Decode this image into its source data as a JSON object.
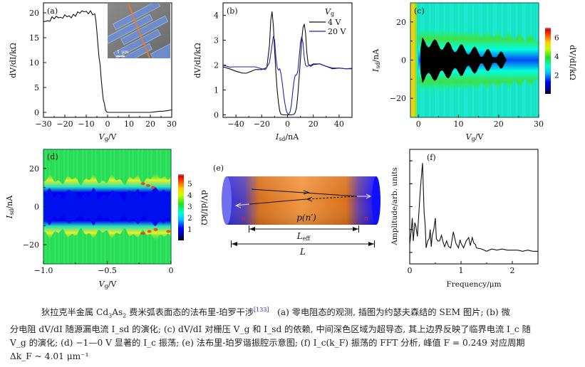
{
  "colors": {
    "axis": "#111111",
    "series_4V": "#111111",
    "series_20V": "#2222bb",
    "superconducting": "#000000",
    "n_region": "#2a2ae0",
    "p_region": "#e88a3a",
    "ref_link": "#2233aa"
  },
  "chart_data": [
    {
      "panel": "(a)",
      "type": "line",
      "xlabel": "Vg/V",
      "ylabel": "dV/dI/kΩ",
      "xlim": [
        -30,
        30
      ],
      "ylim": [
        -1,
        22
      ],
      "xticks": [
        "−30",
        "−20",
        "−10",
        "0",
        "10",
        "20",
        "30"
      ],
      "yticks": [
        "0",
        "5",
        "10",
        "15",
        "20"
      ],
      "inset": {
        "type": "SEM image",
        "scale_bar": "1 μm"
      },
      "series": [
        {
          "name": "dV/dI",
          "x": [
            -30,
            -28,
            -27,
            -26,
            -25,
            -24,
            -23,
            -22,
            -21,
            -20,
            -19,
            -18,
            -17,
            -16,
            -15,
            -14,
            -13,
            -12,
            -11,
            -10,
            -9,
            -8,
            -7,
            -6,
            -5.5,
            -5,
            -4.5,
            -4,
            -3.5,
            -3,
            -2.5,
            -2,
            -1.5,
            -1,
            -0.5,
            0,
            5,
            10,
            15,
            20,
            22,
            24,
            26,
            28,
            30
          ],
          "y": [
            18.2,
            18.4,
            18.3,
            19.2,
            18.8,
            19.3,
            19.0,
            19.1,
            18.9,
            19.6,
            19.2,
            19.4,
            19.0,
            19.7,
            19.3,
            20.2,
            19.9,
            20.4,
            20.2,
            20.3,
            19.8,
            20.4,
            19.6,
            19.8,
            18.5,
            16.2,
            13.5,
            11.0,
            9.6,
            6.8,
            4.5,
            2.5,
            1.8,
            0.5,
            0.1,
            0.0,
            0.0,
            0.0,
            0.0,
            0.0,
            0.1,
            0.2,
            0.25,
            0.35,
            0.5
          ]
        }
      ]
    },
    {
      "panel": "(b)",
      "type": "line",
      "xlabel": "Isd/nA",
      "ylabel": "dV/dI/kΩ",
      "xlim": [
        -50,
        50
      ],
      "ylim": [
        -0.1,
        4.5
      ],
      "xticks": [
        "−40",
        "−20",
        "0",
        "20",
        "40"
      ],
      "yticks": [
        "0",
        "1",
        "2",
        "3",
        "4"
      ],
      "legend": {
        "title": "Vg",
        "position": "top-right"
      },
      "series": [
        {
          "name": "4 V",
          "x": [
            -50,
            -45,
            -40,
            -35,
            -32,
            -28,
            -25,
            -20,
            -16,
            -14,
            -13,
            -12,
            -11,
            -10,
            -9,
            -8,
            -7,
            -6,
            -5,
            -3,
            0,
            3,
            5,
            6,
            7,
            8,
            9,
            10,
            11,
            12,
            13,
            14,
            15,
            16,
            18,
            20,
            25,
            30,
            35,
            40,
            45,
            50
          ],
          "y": [
            1.93,
            1.85,
            1.75,
            1.68,
            1.67,
            1.75,
            1.82,
            1.82,
            1.9,
            2.8,
            3.8,
            4.15,
            3.6,
            2.6,
            1.7,
            1.0,
            0.5,
            0.15,
            0.02,
            0.0,
            0.0,
            0.0,
            0.02,
            0.1,
            0.3,
            0.8,
            1.5,
            2.2,
            3.0,
            3.5,
            3.65,
            3.3,
            2.5,
            2.05,
            1.95,
            2.02,
            2.05,
            1.95,
            1.85,
            1.88,
            1.85,
            1.85
          ]
        },
        {
          "name": "20 V",
          "x": [
            -50,
            -45,
            -40,
            -35,
            -30,
            -25,
            -20,
            -17,
            -14,
            -12,
            -11,
            -10,
            -9,
            -8,
            -7,
            -6,
            -5,
            -4,
            -3,
            -2,
            -1,
            0,
            1,
            2,
            3,
            4,
            5,
            6,
            7,
            8,
            9,
            10,
            11,
            12,
            13,
            14,
            15,
            18,
            20,
            25,
            30,
            35,
            40,
            45,
            50
          ],
          "y": [
            2.0,
            1.92,
            1.93,
            1.93,
            1.93,
            1.93,
            1.85,
            1.82,
            2.1,
            2.8,
            3.15,
            3.0,
            2.3,
            1.9,
            1.8,
            1.85,
            1.65,
            1.25,
            0.8,
            0.45,
            0.18,
            0.05,
            0.03,
            0.12,
            0.4,
            0.9,
            1.35,
            1.6,
            1.6,
            1.75,
            2.3,
            2.9,
            3.15,
            2.9,
            2.3,
            2.0,
            1.95,
            2.0,
            2.05,
            2.05,
            1.95,
            1.88,
            1.88,
            1.85,
            1.87
          ]
        }
      ]
    },
    {
      "panel": "(c)",
      "type": "heatmap",
      "xlabel": "Vg/V",
      "ylabel": "Isd/nA",
      "xlim": [
        -2,
        30
      ],
      "ylim": [
        -30,
        30
      ],
      "xticks": [
        "0",
        "10",
        "20",
        "30"
      ],
      "yticks": [
        "−20",
        "0",
        "20"
      ],
      "colorbar": {
        "label": "dV/dI/kΩ",
        "ticks": [
          "2",
          "4",
          "6"
        ],
        "range": [
          0,
          7
        ]
      }
    },
    {
      "panel": "(d)",
      "type": "heatmap",
      "xlabel": "Vg/V",
      "ylabel": "Isd/nA",
      "xlim": [
        -1.0,
        0
      ],
      "ylim": [
        -30,
        30
      ],
      "xticks": [
        "−1.0",
        "−0.5",
        "0"
      ],
      "yticks": [
        "−20",
        "0",
        "20"
      ],
      "colorbar": {
        "label": "dV/dI/kΩ",
        "ticks": [
          "1",
          "2",
          "3",
          "4",
          "5"
        ],
        "range": [
          0,
          5.8
        ]
      }
    },
    {
      "panel": "(f)",
      "type": "line",
      "xlabel": "Frequency/μm",
      "ylabel": "Amplitude/arb. units",
      "xlim": [
        0,
        2.5
      ],
      "ylim": [
        0,
        1
      ],
      "xticks": [
        "0",
        "1",
        "2"
      ],
      "series": [
        {
          "name": "FFT",
          "x": [
            0,
            0.03,
            0.05,
            0.07,
            0.1,
            0.12,
            0.15,
            0.2,
            0.22,
            0.25,
            0.28,
            0.3,
            0.32,
            0.35,
            0.38,
            0.4,
            0.42,
            0.44,
            0.47,
            0.5,
            0.52,
            0.55,
            0.58,
            0.62,
            0.65,
            0.68,
            0.72,
            0.76,
            0.8,
            0.85,
            0.9,
            0.95,
            0.98,
            1.0,
            1.05,
            1.1,
            1.15,
            1.18,
            1.22,
            1.25,
            1.28,
            1.3,
            1.4,
            1.5,
            1.6,
            1.7,
            1.8,
            1.9,
            2.0,
            2.1,
            2.2,
            2.3,
            2.4,
            2.5
          ],
          "y": [
            0.17,
            0.29,
            0.4,
            0.2,
            0.36,
            0.33,
            0.24,
            0.6,
            0.72,
            0.88,
            0.45,
            0.35,
            0.14,
            0.2,
            0.22,
            0.3,
            0.15,
            0.25,
            0.3,
            0.4,
            0.22,
            0.2,
            0.2,
            0.25,
            0.19,
            0.15,
            0.2,
            0.15,
            0.14,
            0.28,
            0.18,
            0.14,
            0.21,
            0.18,
            0.14,
            0.2,
            0.23,
            0.16,
            0.23,
            0.18,
            0.17,
            0.14,
            0.13,
            0.11,
            0.13,
            0.12,
            0.13,
            0.12,
            0.12,
            0.12,
            0.11,
            0.12,
            0.11,
            0.11
          ]
        }
      ]
    }
  ],
  "panels": {
    "a": {
      "label": "(a)",
      "inset_scale": "1 μm"
    },
    "b": {
      "label": "(b)",
      "legend_title": "V",
      "legend_title_sub": "g",
      "legend_items": [
        "4 V",
        "20 V"
      ]
    },
    "c": {
      "label": "(c)"
    },
    "d": {
      "label": "(d)"
    },
    "e": {
      "label": "(e)",
      "left_region": "n",
      "center_region": "p(n′)",
      "right_region": "n",
      "l_eff": "L",
      "l_eff_sub": "eff",
      "l_total": "L"
    },
    "f": {
      "label": "(f)"
    }
  },
  "axis_labels": {
    "dVdI": "dV/dI/kΩ",
    "vg_main": "V",
    "vg_sub": "g",
    "vg_unit": "/V",
    "isd_main": "I",
    "isd_sub": "sd",
    "isd_unit": "/nA",
    "amplitude": "Amplitude/arb. units",
    "frequency": "Frequency/μm"
  },
  "caption": {
    "line1_a": "狄拉克半金属 Cd",
    "line1_sub1": "3",
    "line1_b": "As",
    "line1_sub2": "2",
    "line1_c": " 费米弧表面态的法布里-珀罗干涉",
    "ref": "[133]",
    "line1_d": "   (a) 零电阻态的观测, 插图为约瑟夫森结的 SEM 图片; (b) 微",
    "line2": "分电阻 dV/dI 随源漏电流 I_sd 的演化; (c) dV/dI 对栅压 V_g 和 I_sd 的依赖, 中间深色区域为超导态, 其上边界反映了临界电流 I_c 随",
    "line3": "V_g 的演化; (d) −1—0 V 显著的 I_c 振荡; (e) 法布里-珀罗谐振腔示意图; (f) I_c(k_F) 振荡的 FFT 分析, 峰值 F = 0.249 对应周期",
    "line4": "Δk_F ~ 4.01 μm⁻¹"
  }
}
